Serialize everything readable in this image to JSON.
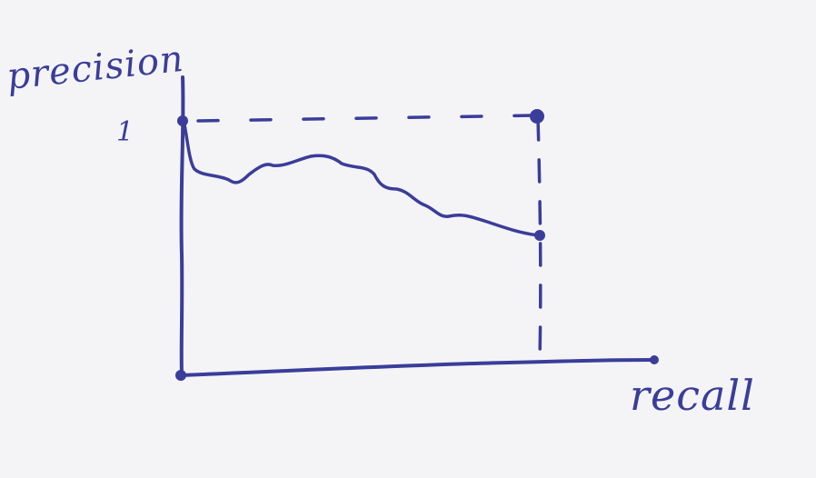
{
  "diagram": {
    "y_axis_label": "precision",
    "x_axis_label": "recall",
    "y_tick_label": "1",
    "ink_color": "#3a3d9a",
    "background_color": "#f4f4f6"
  }
}
